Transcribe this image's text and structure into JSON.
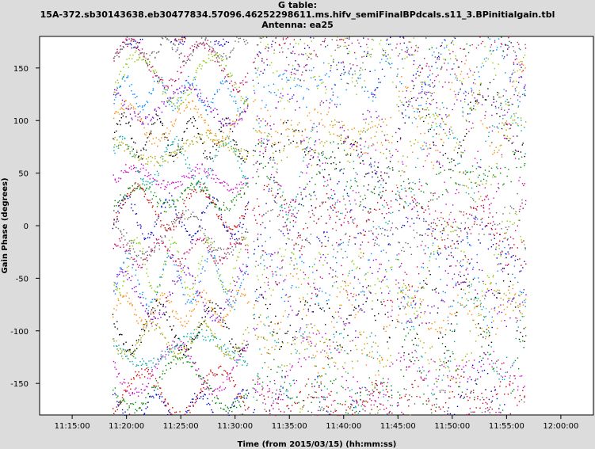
{
  "title": {
    "line1": "G table:",
    "line2": "15A-372.sb30143638.eb30477834.57096.46252298611.ms.hifv_semiFinalBPdcals.s11_3.BPinitialgain.tbl",
    "line3": "Antenna: ea25"
  },
  "chart_data": {
    "type": "scatter",
    "title": "G table: 15A-372.sb30143638.eb30477834.57096.46252298611.ms.hifv_semiFinalBPdcals.s11_3.BPinitialgain.tbl",
    "subtitle": "Antenna: ea25",
    "xlabel": "Time (from 2015/03/15) (hh:mm:ss)",
    "ylabel": "Gain Phase (degrees)",
    "xlim": [
      "11:12:00",
      "12:03:00"
    ],
    "ylim": [
      -180,
      180
    ],
    "xticks": [
      "11:15:00",
      "11:20:00",
      "11:25:00",
      "11:30:00",
      "11:35:00",
      "11:40:00",
      "11:45:00",
      "11:50:00",
      "11:55:00",
      "12:00:00"
    ],
    "yticks": [
      -150,
      -100,
      -50,
      0,
      50,
      100,
      150
    ],
    "grid": false,
    "legend": "none",
    "scans": [
      {
        "start": "11:18:45",
        "end": "11:31:10"
      },
      {
        "start": "11:31:40",
        "end": "11:44:25"
      },
      {
        "start": "11:44:50",
        "end": "11:56:45"
      }
    ],
    "series_colors": [
      "#0000cc",
      "#cc0000",
      "#008800",
      "#cc00cc",
      "#00aaaa",
      "#aaaa00",
      "#000000",
      "#ff8800",
      "#8800cc",
      "#0088ff",
      "#88cc00",
      "#cc0066",
      "#666666"
    ]
  }
}
